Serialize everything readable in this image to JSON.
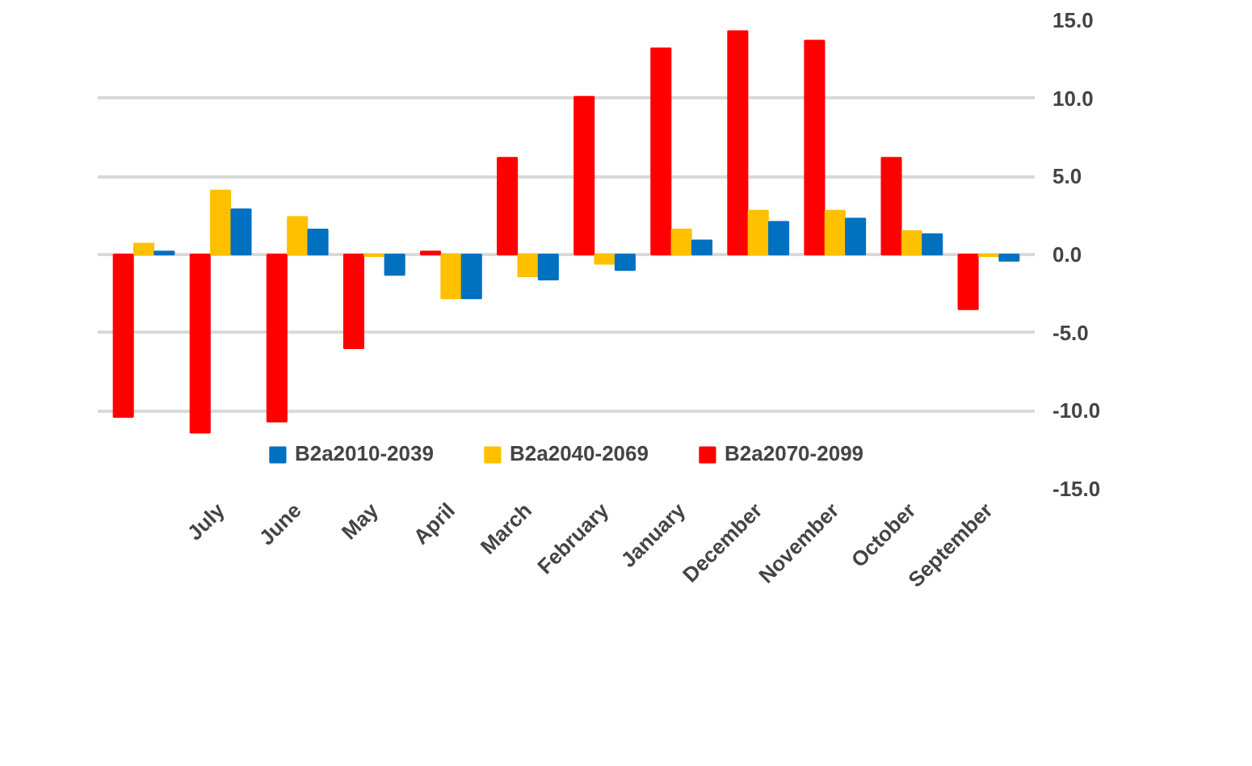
{
  "chart_data": {
    "type": "bar",
    "categories": [
      null,
      "July",
      "June",
      "May",
      "April",
      "March",
      "February",
      "January",
      "December",
      "November",
      "October",
      "September"
    ],
    "series": [
      {
        "name": "B2a2070-2099",
        "color": "#ff0000",
        "values": [
          -10.4,
          -11.4,
          -10.7,
          -6.0,
          0.2,
          6.2,
          10.1,
          13.2,
          14.3,
          13.7,
          6.2,
          -3.5
        ]
      },
      {
        "name": "B2a2040-2069",
        "color": "#ffc000",
        "values": [
          0.7,
          4.1,
          2.4,
          -0.1,
          -2.8,
          -1.4,
          -0.6,
          1.6,
          2.8,
          2.8,
          1.5,
          -0.1
        ]
      },
      {
        "name": "B2a2010-2039",
        "color": "#0070c0",
        "values": [
          0.2,
          2.9,
          1.6,
          -1.3,
          -2.8,
          -1.6,
          -1.0,
          0.9,
          2.1,
          2.3,
          1.3,
          -0.4
        ]
      }
    ],
    "ylim": [
      -15,
      15
    ],
    "yticks": [
      {
        "value": -15,
        "label": "-15.0"
      },
      {
        "value": -10,
        "label": "-10.0"
      },
      {
        "value": -5,
        "label": "-5.0"
      },
      {
        "value": 0,
        "label": "0.0"
      },
      {
        "value": 5,
        "label": "5.0"
      },
      {
        "value": 10,
        "label": "10.0"
      },
      {
        "value": 15,
        "label": "15.0"
      }
    ],
    "grid": "y",
    "legend": "bottom"
  }
}
